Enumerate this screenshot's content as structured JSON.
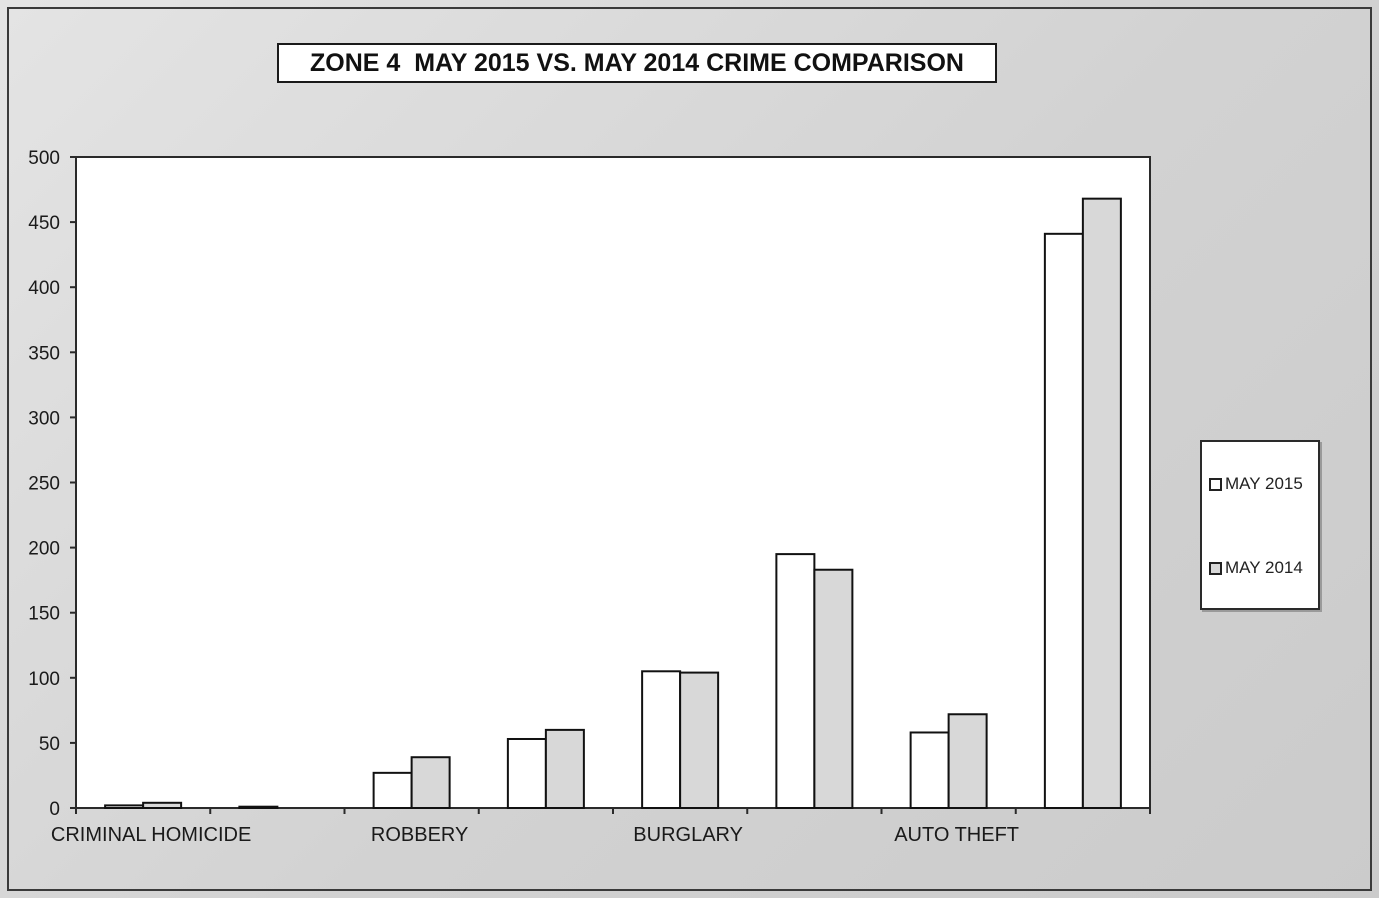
{
  "chart_data": {
    "type": "bar",
    "title": "ZONE 4  MAY 2015 VS. MAY 2014 CRIME COMPARISON",
    "xlabel": "",
    "ylabel": "",
    "ylim": [
      0,
      500
    ],
    "yticks": [
      "0",
      "50",
      "100",
      "150",
      "200",
      "250",
      "300",
      "350",
      "400",
      "450",
      "500"
    ],
    "grid": false,
    "legend_position": "right",
    "categories": [
      {
        "label": "CRIMINAL HOMICIDE"
      },
      {
        "label": ""
      },
      {
        "label": "ROBBERY"
      },
      {
        "label": ""
      },
      {
        "label": "BURGLARY"
      },
      {
        "label": ""
      },
      {
        "label": "AUTO THEFT"
      },
      {
        "label": ""
      }
    ],
    "series": [
      {
        "name": "MAY 2015",
        "color": "#ffffff",
        "values": [
          2,
          1,
          27,
          53,
          105,
          195,
          58,
          441
        ]
      },
      {
        "name": "MAY 2014",
        "color": "#d8d8d8",
        "values": [
          4,
          0,
          39,
          60,
          104,
          183,
          72,
          468
        ]
      }
    ]
  }
}
